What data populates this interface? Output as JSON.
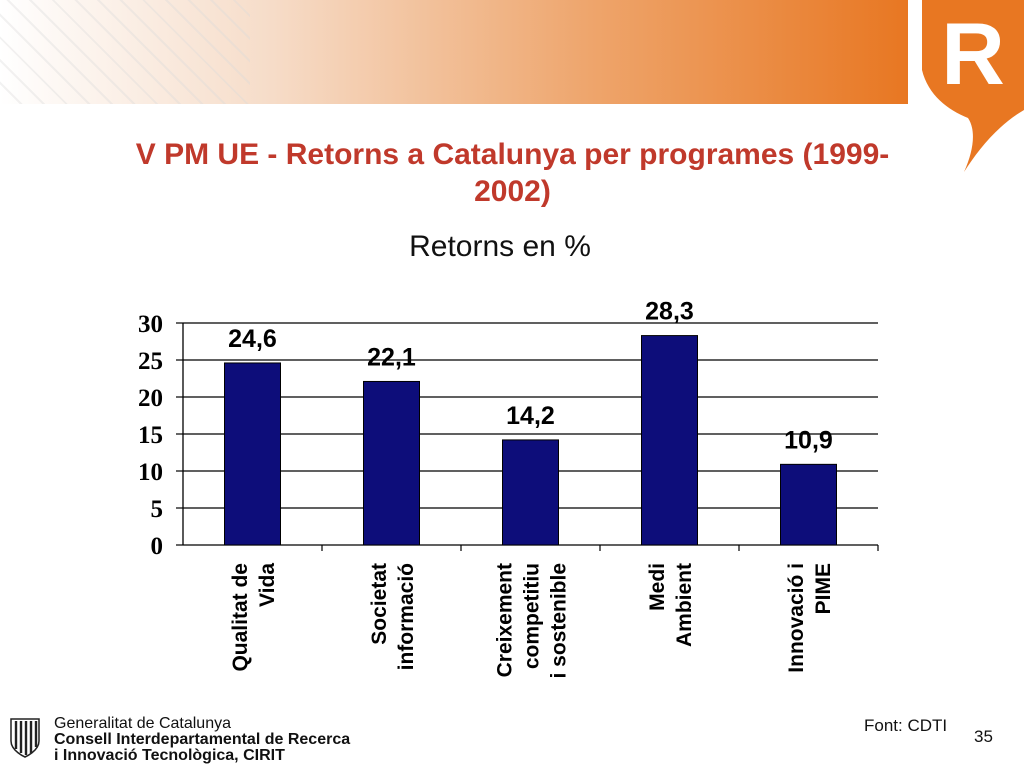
{
  "title": "V PM UE - Retorns a Catalunya per programes (1999-2002)",
  "chart_data": {
    "type": "bar",
    "title": "Retorns en %",
    "categories": [
      "Qualitat de Vida",
      "Societat informació",
      "Creixement competitiu i sostenible",
      "Medi Ambient",
      "Innovació i PIME"
    ],
    "category_lines": [
      [
        "Qualitat de",
        "Vida"
      ],
      [
        "Societat",
        "informació"
      ],
      [
        "Creixement",
        "competitiu",
        "i sostenible"
      ],
      [
        "Medi",
        "Ambient"
      ],
      [
        "Innovació i",
        "PIME"
      ]
    ],
    "values": [
      24.6,
      22.1,
      14.2,
      28.3,
      10.9
    ],
    "data_labels": [
      "24,6",
      "22,1",
      "14,2",
      "28,3",
      "10,9"
    ],
    "yticks": [
      0,
      5,
      10,
      15,
      20,
      25,
      30
    ],
    "ylim": [
      0,
      30
    ],
    "grid": true,
    "bar_color": "#0d0d7a"
  },
  "source_note": "Font: CDTI",
  "page_number": "35",
  "footer": {
    "line1": "Generalitat de Catalunya",
    "line2": "Consell Interdepartamental de Recerca",
    "line3": "i Innovació Tecnològica, CIRIT"
  },
  "logo_letter": "R",
  "colors": {
    "accent": "#e87722",
    "title": "#c0392b"
  }
}
